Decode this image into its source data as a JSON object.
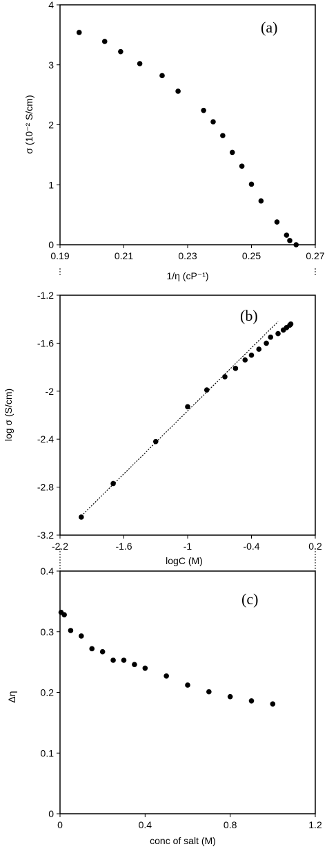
{
  "chart_data": [
    {
      "id": "a",
      "type": "scatter",
      "panel_label": "(a)",
      "xlabel": "1/η (cP⁻¹)",
      "ylabel": "σ (10⁻² S/cm)",
      "xlim": [
        0.19,
        0.27
      ],
      "ylim": [
        0,
        4
      ],
      "xticks": [
        "0.19",
        "0.21",
        "0.23",
        "0.25",
        "0.27"
      ],
      "yticks": [
        "0",
        "1",
        "2",
        "3",
        "4"
      ],
      "grid": false,
      "x": [
        0.196,
        0.204,
        0.209,
        0.215,
        0.222,
        0.227,
        0.235,
        0.238,
        0.241,
        0.244,
        0.247,
        0.25,
        0.253,
        0.258,
        0.261,
        0.262,
        0.264
      ],
      "y": [
        3.54,
        3.39,
        3.22,
        3.02,
        2.82,
        2.56,
        2.24,
        2.05,
        1.82,
        1.54,
        1.31,
        1.01,
        0.73,
        0.38,
        0.16,
        0.07,
        0.0
      ]
    },
    {
      "id": "b",
      "type": "scatter",
      "panel_label": "(b)",
      "xlabel": "logC (M)",
      "ylabel": "log σ (S/cm)",
      "xlim": [
        -2.2,
        0.2
      ],
      "ylim": [
        -3.2,
        -1.2
      ],
      "xticks": [
        "-2.2",
        "-1.6",
        "-1",
        "-0.4",
        "0.2"
      ],
      "yticks": [
        "-1.2",
        "-1.6",
        "-2",
        "-2.4",
        "-2.8",
        "-3.2"
      ],
      "grid": false,
      "x": [
        -2.0,
        -1.7,
        -1.3,
        -1.0,
        -0.82,
        -0.65,
        -0.55,
        -0.46,
        -0.4,
        -0.33,
        -0.26,
        -0.22,
        -0.15,
        -0.1,
        -0.07,
        -0.04,
        -0.03
      ],
      "y": [
        -3.05,
        -2.77,
        -2.42,
        -2.13,
        -1.99,
        -1.88,
        -1.81,
        -1.74,
        -1.7,
        -1.65,
        -1.6,
        -1.55,
        -1.52,
        -1.49,
        -1.47,
        -1.45,
        -1.44
      ],
      "fit_line": {
        "x": [
          -2.0,
          -0.15
        ],
        "y": [
          -3.04,
          -1.42
        ]
      }
    },
    {
      "id": "c",
      "type": "scatter",
      "panel_label": "(c)",
      "xlabel": "conc of salt (M)",
      "ylabel": "Δη",
      "xlim": [
        0,
        1.2
      ],
      "ylim": [
        0,
        0.4
      ],
      "xticks": [
        "0",
        "0.4",
        "0.8",
        "1.2"
      ],
      "yticks": [
        "0",
        "0.1",
        "0.2",
        "0.3",
        "0.4"
      ],
      "grid": false,
      "x": [
        0.005,
        0.02,
        0.05,
        0.1,
        0.15,
        0.2,
        0.25,
        0.3,
        0.35,
        0.4,
        0.5,
        0.6,
        0.7,
        0.8,
        0.9,
        1.0
      ],
      "y": [
        0.332,
        0.328,
        0.302,
        0.293,
        0.272,
        0.267,
        0.253,
        0.253,
        0.246,
        0.24,
        0.227,
        0.212,
        0.201,
        0.193,
        0.186,
        0.181
      ]
    }
  ]
}
